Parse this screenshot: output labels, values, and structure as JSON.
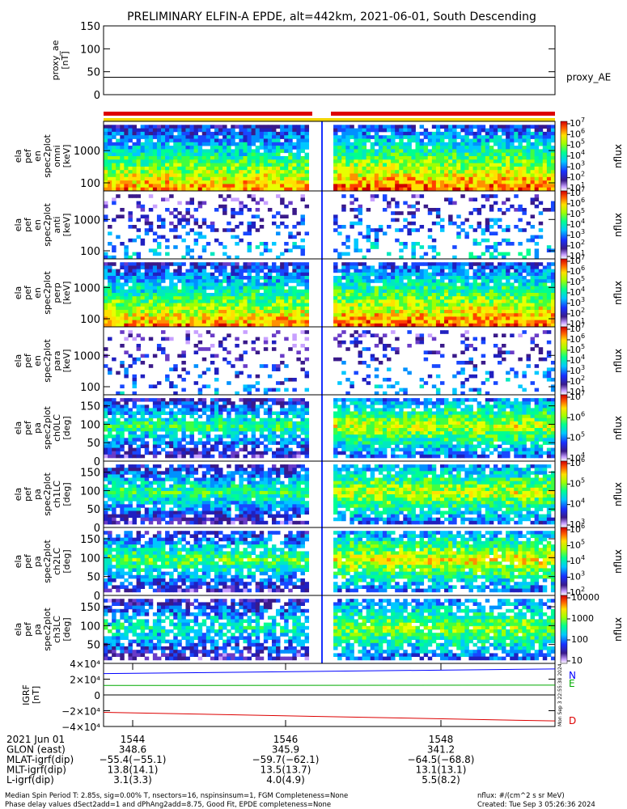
{
  "title": "PRELIMINARY ELFIN-A EPDE, alt=442km, 2021-06-01, South Descending",
  "colors": {
    "frame": "#000000",
    "bar_red": "#dd0000",
    "bar_yellow": "#f2d600",
    "north": "#0000ff",
    "east": "#00aa00",
    "down": "#dd0000"
  },
  "chart_data": [
    {
      "type": "line",
      "panel": "proxy_ae",
      "ylabel_lines": [
        "proxy_ae",
        "[nT]"
      ],
      "ylim": [
        0,
        150
      ],
      "yticks": [
        "150",
        "100",
        "50",
        "0"
      ],
      "yticks_values": [
        150,
        100,
        50,
        0
      ],
      "series": [
        {
          "name": "proxy_AE",
          "values": [
            38,
            38
          ]
        }
      ]
    },
    {
      "type": "heatmap",
      "panels": [
        {
          "ylabel_lines": [
            "ela",
            "pef",
            "en",
            "spec2plot",
            "omni",
            "[keV]"
          ],
          "yticks": [
            "1000",
            "100"
          ],
          "yscale": "log",
          "cbar_label": "nflux",
          "cbar_ticks": [
            "10^7",
            "10^6",
            "10^5",
            "10^4",
            "10^3",
            "10^2",
            "10^1"
          ],
          "density": 0.9,
          "high": 0.75
        },
        {
          "ylabel_lines": [
            "ela",
            "pef",
            "en",
            "spec2plot",
            "anti",
            "[keV]"
          ],
          "yticks": [
            "1000",
            "100"
          ],
          "yscale": "log",
          "cbar_label": "nflux",
          "cbar_ticks": [
            "10^7",
            "10^6",
            "10^5",
            "10^4",
            "10^3",
            "10^2",
            "10^1"
          ],
          "density": 0.25,
          "high": 0.35
        },
        {
          "ylabel_lines": [
            "ela",
            "pef",
            "en",
            "spec2plot",
            "perp",
            "[keV]"
          ],
          "yticks": [
            "1000",
            "100"
          ],
          "yscale": "log",
          "cbar_label": "nflux",
          "cbar_ticks": [
            "10^7",
            "10^6",
            "10^5",
            "10^4",
            "10^3",
            "10^2",
            "10^1"
          ],
          "density": 0.9,
          "high": 0.75
        },
        {
          "ylabel_lines": [
            "ela",
            "pef",
            "en",
            "spec2plot",
            "para",
            "[keV]"
          ],
          "yticks": [
            "1000",
            "100"
          ],
          "yscale": "log",
          "cbar_label": "nflux",
          "cbar_ticks": [
            "10^7",
            "10^6",
            "10^5",
            "10^4",
            "10^3",
            "10^2",
            "10^1"
          ],
          "density": 0.2,
          "high": 0.3
        },
        {
          "ylabel_lines": [
            "ela",
            "pef",
            "pa",
            "spec2plot",
            "ch0LC",
            "[deg]"
          ],
          "yticks": [
            "150",
            "100",
            "50",
            "0"
          ],
          "yscale": "linear",
          "cbar_label": "nflux",
          "cbar_ticks": [
            "10^7",
            "10^6",
            "10^5",
            "10^4"
          ],
          "density": 0.8,
          "high": 0.55
        },
        {
          "ylabel_lines": [
            "ela",
            "pef",
            "pa",
            "spec2plot",
            "ch1LC",
            "[deg]"
          ],
          "yticks": [
            "150",
            "100",
            "50",
            "0"
          ],
          "yscale": "linear",
          "cbar_label": "nflux",
          "cbar_ticks": [
            "10^6",
            "10^5",
            "10^4",
            "10^3"
          ],
          "density": 0.8,
          "high": 0.55
        },
        {
          "ylabel_lines": [
            "ela",
            "pef",
            "pa",
            "spec2plot",
            "ch2LC",
            "[deg]"
          ],
          "yticks": [
            "150",
            "100",
            "50",
            "0"
          ],
          "yscale": "linear",
          "cbar_label": "nflux",
          "cbar_ticks": [
            "10^6",
            "10^5",
            "10^4",
            "10^3",
            "10^2"
          ],
          "density": 0.75,
          "high": 0.6
        },
        {
          "ylabel_lines": [
            "ela",
            "pef",
            "pa",
            "spec2plot",
            "ch3LC",
            "[deg]"
          ],
          "yticks": [
            "150",
            "100",
            "50"
          ],
          "yscale": "linear",
          "cbar_label": "nflux",
          "cbar_ticks": [
            "10000",
            "1000",
            "100",
            "10"
          ],
          "density": 0.75,
          "high": 0.5
        }
      ]
    },
    {
      "type": "line",
      "panel": "IGRF",
      "ylabel_lines": [
        "IGRF",
        "[nT]"
      ],
      "ylim": [
        -40000,
        40000
      ],
      "yticks": [
        "4×10⁴",
        "2×10⁴",
        "0",
        "−2×10⁴",
        "−4×10⁴"
      ],
      "yticks_values": [
        40000,
        20000,
        0,
        -20000,
        -40000
      ],
      "series": [
        {
          "name": "N",
          "values": [
            27000,
            33000
          ]
        },
        {
          "name": "E",
          "values": [
            12000,
            12500
          ]
        },
        {
          "name": "",
          "values": [
            0,
            0
          ]
        },
        {
          "name": "D",
          "values": [
            -22000,
            -33000
          ]
        }
      ],
      "side_stamp": "Mon Sep 3 22:55:38 2024"
    }
  ],
  "x_ticks": [
    "1544",
    "1546",
    "1548"
  ],
  "footer_table": {
    "rows": [
      {
        "label": "2021 Jun 01",
        "values": [
          "1544",
          "1546",
          "1548"
        ]
      },
      {
        "label": "GLON (east)",
        "values": [
          "348.6",
          "345.9",
          "341.2"
        ]
      },
      {
        "label": "MLAT-igrf(dip)",
        "values": [
          "−55.4(−55.1)",
          "−59.7(−62.1)",
          "−64.5(−68.8)"
        ]
      },
      {
        "label": "MLT-igrf(dip)",
        "values": [
          "13.8(14.1)",
          "13.5(13.7)",
          "13.1(13.1)"
        ]
      },
      {
        "label": "L-igrf(dip)",
        "values": [
          "3.1(3.3)",
          "4.0(4.9)",
          "5.5(8.2)"
        ]
      }
    ]
  },
  "footer_notes": {
    "line1": "Median Spin Period T: 2.85s, sig=0.00% T, nsectors=16, nspinsinsum=1, FGM Completeness=None",
    "line2": "Phase delay values dSect2add=1 and dPhAng2add=8.75, Good Fit, EPDE completeness=None",
    "units": "nflux: #/(cm^2 s sr MeV)",
    "created": "Created: Tue Sep  3 05:26:36 2024"
  }
}
